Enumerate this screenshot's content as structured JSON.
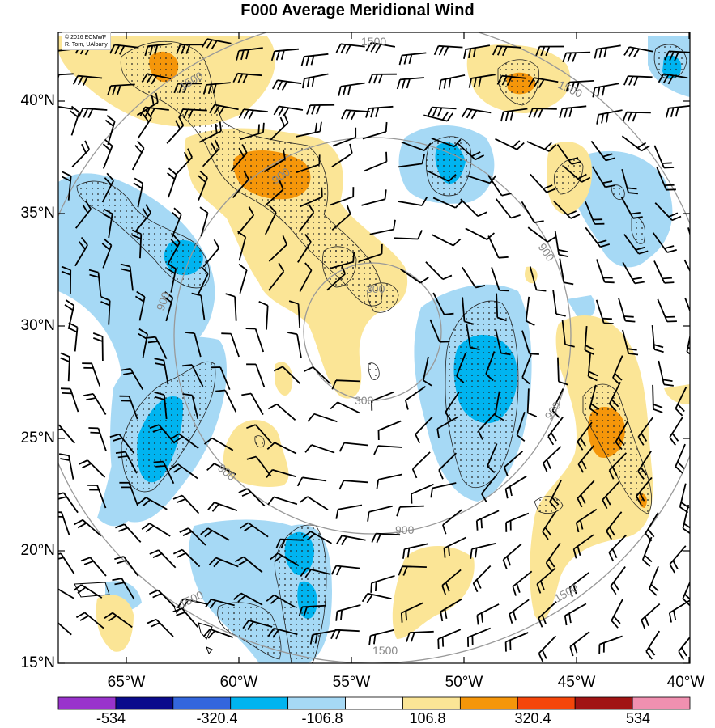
{
  "title": "F000 Average Meridional Wind",
  "credit": [
    "© 2016 ECMWF",
    "R. Torn, UAlbany"
  ],
  "map": {
    "lat_labels": [
      "40°N",
      "35°N",
      "30°N",
      "25°N",
      "20°N",
      "15°N"
    ],
    "lon_labels": [
      "65°W",
      "60°W",
      "55°W",
      "50°W",
      "45°W",
      "40°W"
    ],
    "lat_range": [
      15,
      43
    ],
    "lon_range": [
      -68,
      -40
    ],
    "contour_labels": [
      "300",
      "900",
      "1500"
    ],
    "contour_color": "#999999",
    "stipple": "dotted regions"
  },
  "colorbar": {
    "colors": [
      "#9933cc",
      "#0a0a8c",
      "#3366dd",
      "#00b4f0",
      "#a6d9f5",
      "#ffffff",
      "#fbe596",
      "#f5960a",
      "#f5460a",
      "#a11414",
      "#f090b0"
    ],
    "tick_labels": [
      "-534",
      "-320.4",
      "-106.8",
      "106.8",
      "320.4",
      "534"
    ]
  }
}
